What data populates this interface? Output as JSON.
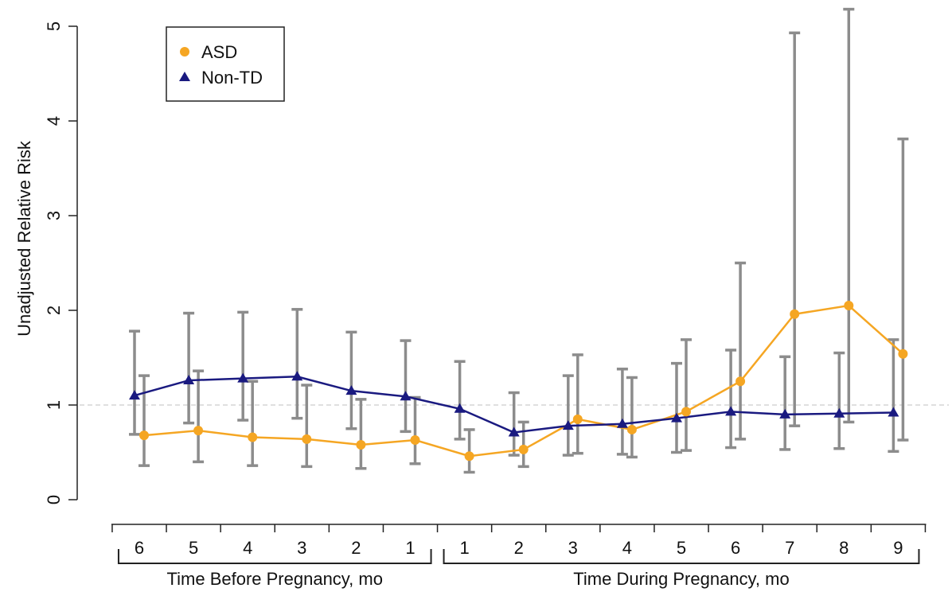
{
  "chart_data": {
    "type": "line",
    "xlabel": "",
    "ylabel": "Unadjusted Relative Risk",
    "ylim": [
      0,
      5
    ],
    "yticks": [
      0,
      1,
      2,
      3,
      4,
      5
    ],
    "reference_line": 1,
    "grid": false,
    "legend_position": "top-left",
    "categories": [
      "6",
      "5",
      "4",
      "3",
      "2",
      "1",
      "1",
      "2",
      "3",
      "4",
      "5",
      "6",
      "7",
      "8",
      "9"
    ],
    "groups": [
      {
        "label": "Time Before Pregnancy, mo",
        "start": 0,
        "end": 5
      },
      {
        "label": "Time During Pregnancy, mo",
        "start": 6,
        "end": 14
      }
    ],
    "series": [
      {
        "name": "ASD",
        "color": "#F5A623",
        "marker": "circle",
        "values": [
          0.68,
          0.73,
          0.66,
          0.64,
          0.58,
          0.63,
          0.46,
          0.53,
          0.85,
          0.74,
          0.93,
          1.25,
          1.96,
          2.05,
          1.54
        ],
        "ci_lower": [
          0.36,
          0.4,
          0.36,
          0.35,
          0.33,
          0.38,
          0.29,
          0.35,
          0.49,
          0.45,
          0.52,
          0.64,
          0.78,
          0.82,
          0.63
        ],
        "ci_upper": [
          1.31,
          1.36,
          1.25,
          1.21,
          1.06,
          1.08,
          0.74,
          0.82,
          1.53,
          1.29,
          1.69,
          2.5,
          4.93,
          5.18,
          3.81
        ]
      },
      {
        "name": "Non-TD",
        "color": "#1A1A80",
        "marker": "triangle",
        "values": [
          1.1,
          1.26,
          1.28,
          1.3,
          1.15,
          1.09,
          0.96,
          0.71,
          0.78,
          0.8,
          0.86,
          0.93,
          0.9,
          0.91,
          0.92
        ],
        "ci_lower": [
          0.69,
          0.81,
          0.84,
          0.86,
          0.75,
          0.72,
          0.64,
          0.47,
          0.47,
          0.48,
          0.5,
          0.55,
          0.53,
          0.54,
          0.51
        ],
        "ci_upper": [
          1.78,
          1.97,
          1.98,
          2.01,
          1.77,
          1.68,
          1.46,
          1.13,
          1.31,
          1.38,
          1.44,
          1.58,
          1.51,
          1.55,
          1.69
        ]
      }
    ],
    "error_bar_color": "#8C8C8C",
    "reference_line_color": "#CCCCCC"
  }
}
